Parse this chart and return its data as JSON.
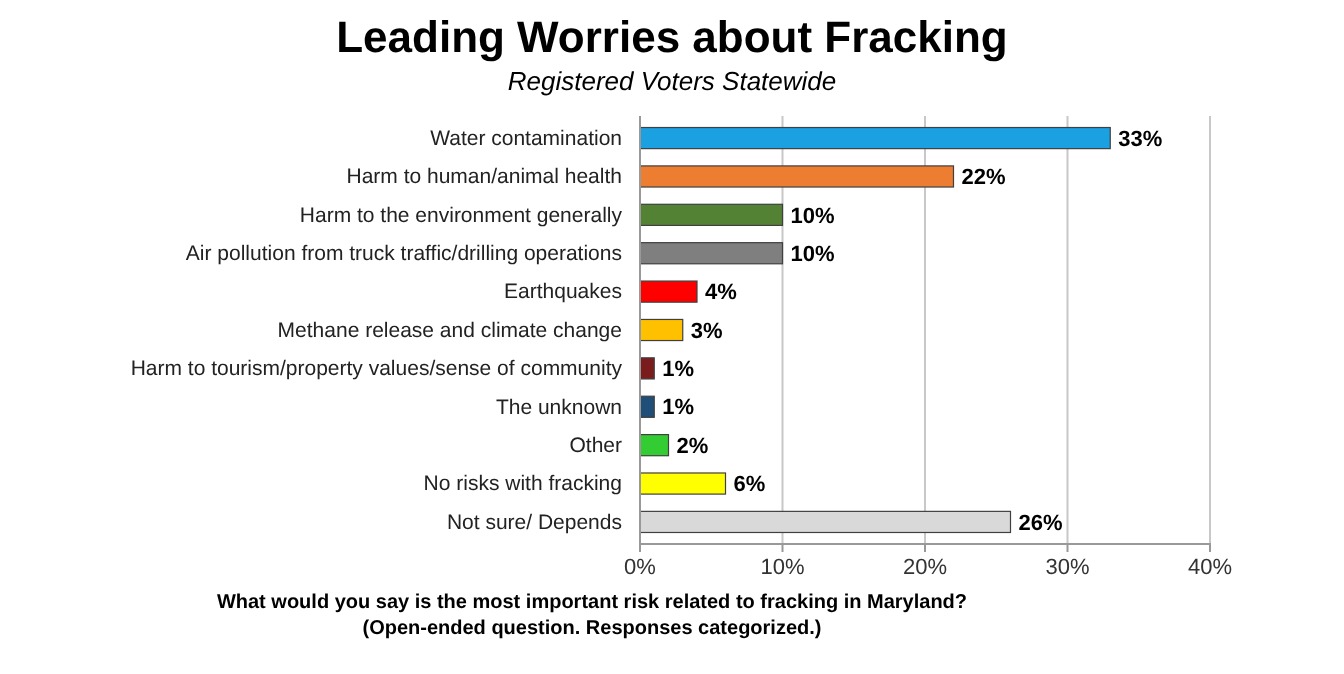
{
  "chart_data": {
    "type": "bar",
    "orientation": "horizontal",
    "title": "Leading Worries about Fracking",
    "subtitle": "Registered Voters Statewide",
    "xlabel": "What would you say is the most important risk related to fracking in Maryland?\n(Open-ended question. Responses categorized.)",
    "categories": [
      "Water contamination",
      "Harm to human/animal health",
      "Harm to the environment generally",
      "Air pollution from truck traffic/drilling operations",
      "Earthquakes",
      "Methane release and climate change",
      "Harm to tourism/property values/sense of community",
      "The unknown",
      "Other",
      "No risks with fracking",
      "Not sure/ Depends"
    ],
    "values": [
      33,
      22,
      10,
      10,
      4,
      3,
      1,
      1,
      2,
      6,
      26
    ],
    "colors": [
      "#1ba1e2",
      "#ed7d31",
      "#548235",
      "#7f7f7f",
      "#ff0000",
      "#ffc000",
      "#7b1c1c",
      "#1f4e79",
      "#33cc33",
      "#ffff00",
      "#d9d9d9"
    ],
    "value_labels": [
      "33%",
      "22%",
      "10%",
      "10%",
      "4%",
      "3%",
      "1%",
      "1%",
      "2%",
      "6%",
      "26%"
    ],
    "xlim": [
      0,
      40
    ],
    "xticks": [
      {
        "value": 0,
        "label": "0%"
      },
      {
        "value": 10,
        "label": "10%"
      },
      {
        "value": 20,
        "label": "20%"
      },
      {
        "value": 30,
        "label": "30%"
      },
      {
        "value": 40,
        "label": "40%"
      }
    ],
    "grid": "x"
  }
}
